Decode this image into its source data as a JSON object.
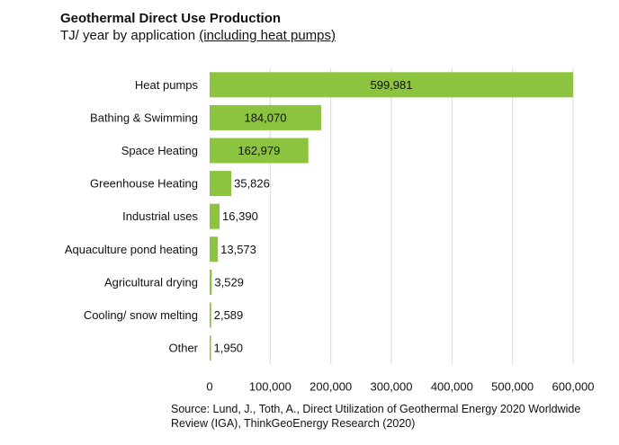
{
  "chart_data": {
    "type": "bar",
    "orientation": "horizontal",
    "title": "Geothermal Direct Use Production",
    "subtitle": "TJ/ year by application",
    "subtitle_underlined": "(including heat pumps)",
    "categories": [
      "Heat pumps",
      "Bathing & Swimming",
      "Space Heating",
      "Greenhouse Heating",
      "Industrial uses",
      "Aquaculture pond heating",
      "Agricultural drying",
      "Cooling/ snow melting",
      "Other"
    ],
    "values": [
      599981,
      184070,
      162979,
      35826,
      16390,
      13573,
      3529,
      2589,
      1950
    ],
    "value_labels": [
      "599,981",
      "184,070",
      "162,979",
      "35,826",
      "16,390",
      "13,573",
      "3,529",
      "2,589",
      "1,950"
    ],
    "xlim": [
      0,
      600000
    ],
    "xticks": [
      0,
      100000,
      200000,
      300000,
      400000,
      500000,
      600000
    ],
    "xtick_labels": [
      "0",
      "100,000",
      "200,000",
      "300,000",
      "400,000",
      "500,000",
      "600,000"
    ],
    "grid": "vertical",
    "legend": "none",
    "bar_color": "#8cc43f",
    "source": "Source: Lund, J., Toth, A., Direct Utilization of Geothermal Energy 2020 Worldwide Review (IGA), ThinkGeoEnergy Research (2020)"
  }
}
